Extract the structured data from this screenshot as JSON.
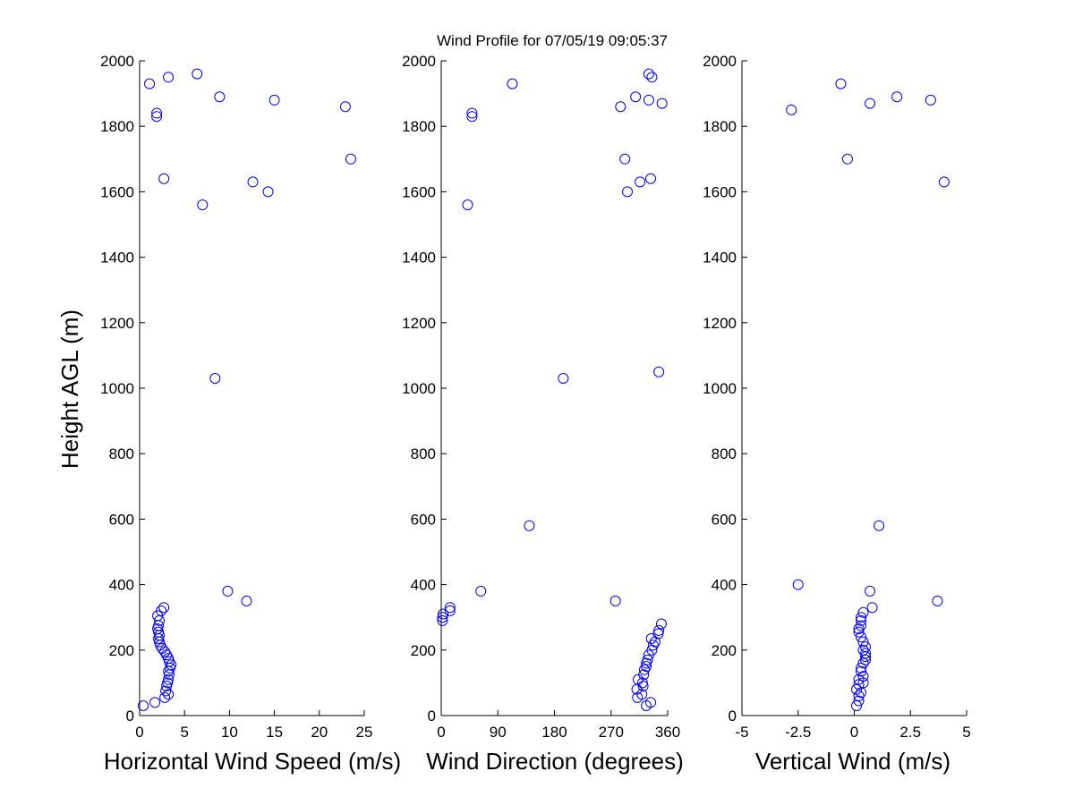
{
  "figure": {
    "title": "Wind Profile for  07/05/19 09:05:37",
    "ylabel": "Height AGL (m)",
    "marker_color": "#0000ff"
  },
  "chart_data": [
    {
      "type": "scatter",
      "xlabel": "Horizontal Wind Speed (m/s)",
      "xlim": [
        0,
        25
      ],
      "ylim": [
        0,
        2000
      ],
      "xticks": [
        0,
        5,
        10,
        15,
        20,
        25
      ],
      "xtick_labels": [
        "0",
        "5",
        "10",
        "15",
        "20",
        "25"
      ],
      "yticks": [
        0,
        200,
        400,
        600,
        800,
        1000,
        1200,
        1400,
        1600,
        1800,
        2000
      ],
      "ytick_labels": [
        "0",
        "200",
        "400",
        "600",
        "800",
        "1000",
        "1200",
        "1400",
        "1600",
        "1800",
        "2000"
      ],
      "points": [
        [
          0.4,
          30
        ],
        [
          1.7,
          40
        ],
        [
          2.8,
          55
        ],
        [
          3.2,
          65
        ],
        [
          2.9,
          75
        ],
        [
          3.0,
          90
        ],
        [
          3.1,
          100
        ],
        [
          3.2,
          110
        ],
        [
          3.3,
          125
        ],
        [
          3.2,
          135
        ],
        [
          3.4,
          145
        ],
        [
          3.5,
          155
        ],
        [
          3.3,
          165
        ],
        [
          3.2,
          175
        ],
        [
          3.0,
          185
        ],
        [
          2.8,
          195
        ],
        [
          2.5,
          205
        ],
        [
          2.3,
          215
        ],
        [
          2.2,
          225
        ],
        [
          2.1,
          235
        ],
        [
          2.2,
          245
        ],
        [
          2.1,
          255
        ],
        [
          2.0,
          265
        ],
        [
          2.1,
          275
        ],
        [
          2.2,
          290
        ],
        [
          2.0,
          305
        ],
        [
          2.4,
          320
        ],
        [
          2.7,
          330
        ],
        [
          11.9,
          350
        ],
        [
          9.8,
          380
        ],
        [
          8.4,
          1030
        ],
        [
          7.0,
          1560
        ],
        [
          14.3,
          1600
        ],
        [
          12.6,
          1630
        ],
        [
          2.7,
          1640
        ],
        [
          23.5,
          1700
        ],
        [
          1.9,
          1830
        ],
        [
          1.9,
          1840
        ],
        [
          22.9,
          1860
        ],
        [
          15.0,
          1880
        ],
        [
          8.9,
          1890
        ],
        [
          1.1,
          1930
        ],
        [
          3.2,
          1950
        ],
        [
          6.4,
          1960
        ]
      ]
    },
    {
      "type": "scatter",
      "xlabel": "Wind Direction (degrees)",
      "xlim": [
        0,
        360
      ],
      "ylim": [
        0,
        2000
      ],
      "xticks": [
        0,
        90,
        180,
        270,
        360
      ],
      "xtick_labels": [
        "0",
        "90",
        "180",
        "270",
        "360"
      ],
      "yticks": [
        0,
        200,
        400,
        600,
        800,
        1000,
        1200,
        1400,
        1600,
        1800,
        2000
      ],
      "ytick_labels": [
        "0",
        "200",
        "400",
        "600",
        "800",
        "1000",
        "1200",
        "1400",
        "1600",
        "1800",
        "2000"
      ],
      "points": [
        [
          326,
          30
        ],
        [
          333,
          40
        ],
        [
          312,
          55
        ],
        [
          319,
          65
        ],
        [
          311,
          80
        ],
        [
          321,
          90
        ],
        [
          320,
          100
        ],
        [
          313,
          110
        ],
        [
          322,
          125
        ],
        [
          323,
          140
        ],
        [
          326,
          150
        ],
        [
          326,
          160
        ],
        [
          328,
          170
        ],
        [
          330,
          185
        ],
        [
          335,
          200
        ],
        [
          337,
          215
        ],
        [
          340,
          225
        ],
        [
          334,
          235
        ],
        [
          345,
          250
        ],
        [
          346,
          260
        ],
        [
          350,
          280
        ],
        [
          2,
          290
        ],
        [
          2,
          300
        ],
        [
          3,
          310
        ],
        [
          14,
          320
        ],
        [
          14,
          330
        ],
        [
          277,
          350
        ],
        [
          63,
          380
        ],
        [
          140,
          580
        ],
        [
          194,
          1030
        ],
        [
          346,
          1050
        ],
        [
          42,
          1560
        ],
        [
          296,
          1600
        ],
        [
          316,
          1630
        ],
        [
          333,
          1640
        ],
        [
          292,
          1700
        ],
        [
          285,
          1860
        ],
        [
          49,
          1830
        ],
        [
          49,
          1840
        ],
        [
          351,
          1870
        ],
        [
          330,
          1880
        ],
        [
          309,
          1890
        ],
        [
          113,
          1930
        ],
        [
          335,
          1950
        ],
        [
          330,
          1960
        ]
      ]
    },
    {
      "type": "scatter",
      "xlabel": "Vertical Wind (m/s)",
      "xlim": [
        -5,
        5
      ],
      "ylim": [
        0,
        2000
      ],
      "xticks": [
        -5,
        -2.5,
        0,
        2.5,
        5
      ],
      "xtick_labels": [
        "-5",
        "-2.5",
        "0",
        "2.5",
        "5"
      ],
      "yticks": [
        0,
        200,
        400,
        600,
        800,
        1000,
        1200,
        1400,
        1600,
        1800,
        2000
      ],
      "ytick_labels": [
        "0",
        "200",
        "400",
        "600",
        "800",
        "1000",
        "1200",
        "1400",
        "1600",
        "1800",
        "2000"
      ],
      "points": [
        [
          0.1,
          30
        ],
        [
          0.2,
          45
        ],
        [
          0.2,
          60
        ],
        [
          0.3,
          70
        ],
        [
          0.1,
          80
        ],
        [
          0.2,
          95
        ],
        [
          0.4,
          100
        ],
        [
          0.2,
          110
        ],
        [
          0.4,
          120
        ],
        [
          0.3,
          135
        ],
        [
          0.3,
          145
        ],
        [
          0.4,
          160
        ],
        [
          0.5,
          170
        ],
        [
          0.5,
          180
        ],
        [
          0.5,
          190
        ],
        [
          0.4,
          200
        ],
        [
          0.5,
          210
        ],
        [
          0.4,
          225
        ],
        [
          0.3,
          240
        ],
        [
          0.2,
          255
        ],
        [
          0.2,
          265
        ],
        [
          0.3,
          275
        ],
        [
          0.3,
          290
        ],
        [
          0.3,
          300
        ],
        [
          0.4,
          315
        ],
        [
          0.8,
          330
        ],
        [
          3.7,
          350
        ],
        [
          0.7,
          380
        ],
        [
          -2.5,
          400
        ],
        [
          1.1,
          580
        ],
        [
          4.0,
          1630
        ],
        [
          -0.3,
          1700
        ],
        [
          -2.8,
          1850
        ],
        [
          0.7,
          1870
        ],
        [
          3.4,
          1880
        ],
        [
          1.9,
          1890
        ],
        [
          -0.6,
          1930
        ]
      ]
    }
  ]
}
